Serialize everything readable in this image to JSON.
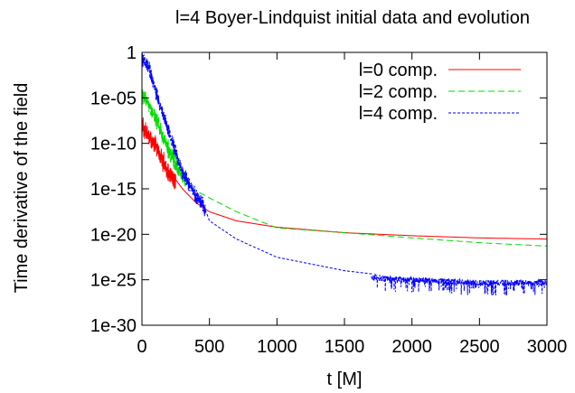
{
  "chart_data": {
    "type": "line",
    "title": "l=4 Boyer-Lindquist initial data and evolution",
    "xlabel": "t [M]",
    "ylabel": "Time derivative of the field",
    "xlim": [
      0,
      3000
    ],
    "ylim": [
      1e-30,
      1
    ],
    "yscale": "log",
    "grid": false,
    "legend_position": "top-right",
    "x_ticks": [
      0,
      500,
      1000,
      1500,
      2000,
      2500,
      3000
    ],
    "x_tick_labels": [
      "0",
      "500",
      "1000",
      "1500",
      "2000",
      "2500",
      "3000"
    ],
    "y_ticks": [
      1,
      1e-05,
      1e-10,
      1e-15,
      1e-20,
      1e-25,
      1e-30
    ],
    "y_tick_labels": [
      "1",
      "1e-05",
      "1e-10",
      "1e-15",
      "1e-20",
      "1e-25",
      "1e-30"
    ],
    "series": [
      {
        "name": "l=0 comp.",
        "color": "#ff0000",
        "dash": "solid",
        "noisy_until": 250,
        "noise_amp_decades": 1.6,
        "x": [
          0,
          50,
          100,
          150,
          200,
          250,
          300,
          400,
          500,
          700,
          1000,
          1500,
          2000,
          2500,
          3000
        ],
        "y": [
          3e-08,
          1e-09,
          2e-10,
          3e-12,
          1e-13,
          1e-14,
          1e-15,
          3e-17,
          3e-18,
          3e-19,
          6e-20,
          1.5e-20,
          7e-21,
          4e-21,
          3e-21
        ]
      },
      {
        "name": "l=2 comp.",
        "color": "#00dd00",
        "dash": "dashed",
        "noisy_until": 320,
        "noise_amp_decades": 1.4,
        "x": [
          0,
          50,
          100,
          200,
          300,
          400,
          500,
          700,
          1000,
          1500,
          2000,
          2500,
          3000
        ],
        "y": [
          3e-05,
          5e-06,
          1e-07,
          3e-11,
          3e-14,
          6e-16,
          1e-16,
          3e-18,
          5e-20,
          1.5e-20,
          4e-21,
          1.2e-21,
          5e-22
        ]
      },
      {
        "name": "l=4 comp.",
        "color": "#0000ff",
        "dash": "dotted",
        "noisy_until": 470,
        "noise_amp_decades": 1.2,
        "noise_tail_from": 1700,
        "noise_tail_amp_decades": 1.8,
        "x": [
          0,
          50,
          100,
          200,
          300,
          400,
          450,
          500,
          700,
          1000,
          1500,
          1800,
          2000,
          2500,
          3000
        ],
        "y": [
          0.3,
          0.05,
          0.0001,
          3e-09,
          1e-13,
          3e-16,
          3e-17,
          3e-19,
          3e-21,
          3e-23,
          1e-24,
          3e-25,
          2e-25,
          1e-25,
          1e-25
        ]
      }
    ]
  }
}
